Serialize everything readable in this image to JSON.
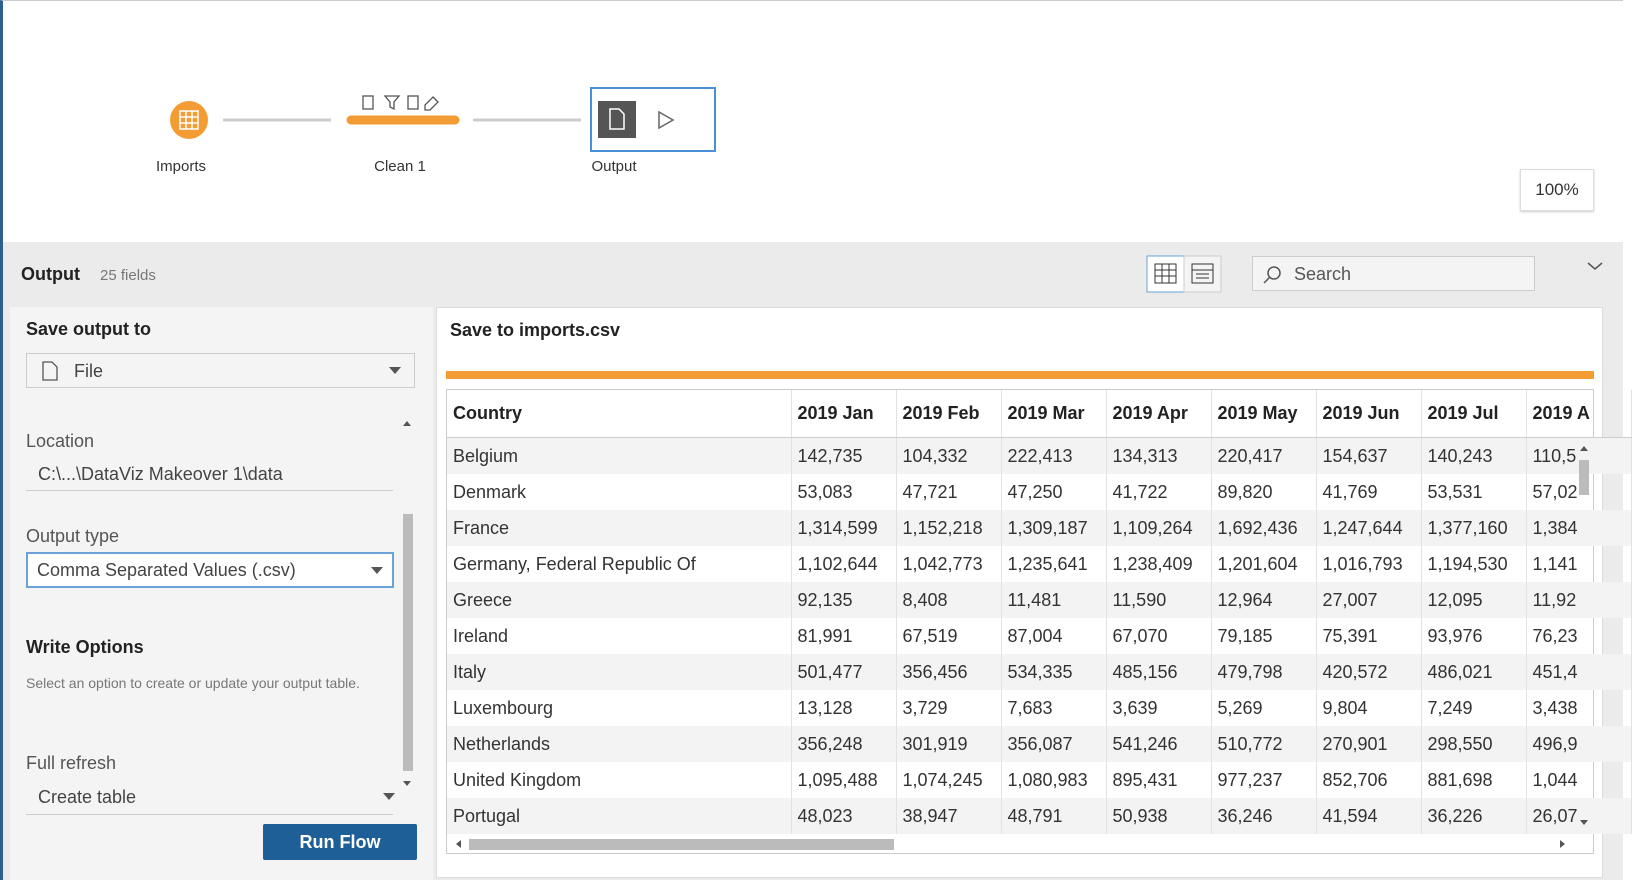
{
  "flow": {
    "nodes": [
      "Imports",
      "Clean 1",
      "Output"
    ],
    "zoom": "100%"
  },
  "panel": {
    "title": "Output",
    "fields": "25 fields",
    "search": "Search"
  },
  "settings": {
    "save_label": "Save output to",
    "save_value": "File",
    "location_label": "Location",
    "location_value": "C:\\...\\DataViz Makeover 1\\data",
    "output_type_label": "Output type",
    "output_type_value": "Comma Separated Values (.csv)",
    "write_options_title": "Write Options",
    "write_options_desc": "Select an option to create or update your output table.",
    "refresh_label": "Full refresh",
    "refresh_value": "Create table",
    "run_button": "Run Flow"
  },
  "preview": {
    "title": "Save to imports.csv",
    "columns": [
      "Country",
      "2019 Jan",
      "2019 Feb",
      "2019 Mar",
      "2019 Apr",
      "2019 May",
      "2019 Jun",
      "2019 Jul",
      "2019 A"
    ],
    "rows": [
      [
        "Belgium",
        "142,735",
        "104,332",
        "222,413",
        "134,313",
        "220,417",
        "154,637",
        "140,243",
        "110,5"
      ],
      [
        "Denmark",
        "53,083",
        "47,721",
        "47,250",
        "41,722",
        "89,820",
        "41,769",
        "53,531",
        "57,02"
      ],
      [
        "France",
        "1,314,599",
        "1,152,218",
        "1,309,187",
        "1,109,264",
        "1,692,436",
        "1,247,644",
        "1,377,160",
        "1,384"
      ],
      [
        "Germany, Federal Republic Of",
        "1,102,644",
        "1,042,773",
        "1,235,641",
        "1,238,409",
        "1,201,604",
        "1,016,793",
        "1,194,530",
        "1,141"
      ],
      [
        "Greece",
        "92,135",
        "8,408",
        "11,481",
        "11,590",
        "12,964",
        "27,007",
        "12,095",
        "11,92"
      ],
      [
        "Ireland",
        "81,991",
        "67,519",
        "87,004",
        "67,070",
        "79,185",
        "75,391",
        "93,976",
        "76,23"
      ],
      [
        "Italy",
        "501,477",
        "356,456",
        "534,335",
        "485,156",
        "479,798",
        "420,572",
        "486,021",
        "451,4"
      ],
      [
        "Luxembourg",
        "13,128",
        "3,729",
        "7,683",
        "3,639",
        "5,269",
        "9,804",
        "7,249",
        "3,438"
      ],
      [
        "Netherlands",
        "356,248",
        "301,919",
        "356,087",
        "541,246",
        "510,772",
        "270,901",
        "298,550",
        "496,9"
      ],
      [
        "United Kingdom",
        "1,095,488",
        "1,074,245",
        "1,080,983",
        "895,431",
        "977,237",
        "852,706",
        "881,698",
        "1,044"
      ],
      [
        "Portugal",
        "48,023",
        "38,947",
        "48,791",
        "50,938",
        "36,246",
        "41,594",
        "36,226",
        "26,07"
      ]
    ]
  }
}
